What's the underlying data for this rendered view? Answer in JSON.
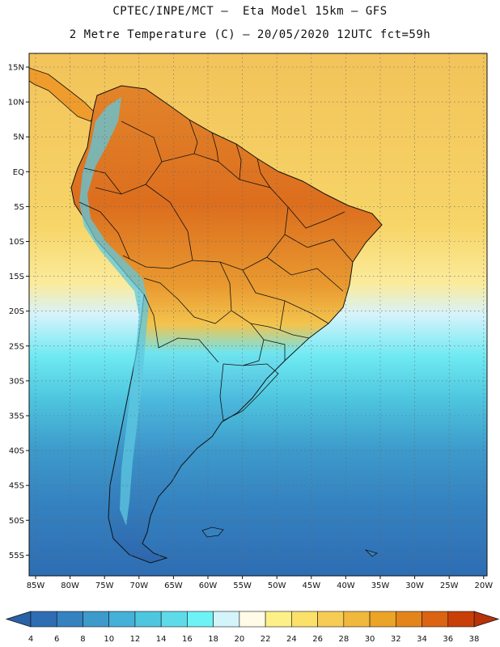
{
  "header": {
    "line1": "CPTEC/INPE/MCT –  Eta Model 15km – GFS",
    "line2": "2 Metre Temperature (C) – 20/05/2020 12UTC fct=59h"
  },
  "map": {
    "lat_labels": [
      "15N",
      "10N",
      "5N",
      "EQ",
      "5S",
      "10S",
      "15S",
      "20S",
      "25S",
      "30S",
      "35S",
      "40S",
      "45S",
      "50S",
      "55S"
    ],
    "lon_labels": [
      "85W",
      "80W",
      "75W",
      "70W",
      "65W",
      "60W",
      "55W",
      "50W",
      "45W",
      "40W",
      "35W",
      "30W",
      "25W",
      "20W"
    ]
  },
  "colorbar": {
    "labels": [
      "4",
      "6",
      "8",
      "10",
      "12",
      "14",
      "16",
      "18",
      "20",
      "22",
      "24",
      "26",
      "28",
      "30",
      "32",
      "34",
      "36",
      "38"
    ],
    "colors": {
      "under": "#2a62a8",
      "bins": [
        "#2e6db3",
        "#3582c0",
        "#3d9acb",
        "#45b0d8",
        "#4ec6df",
        "#5edbe8",
        "#6df3f5",
        "#d4f4fb",
        "#fffbe6",
        "#fdf088",
        "#fbe06a",
        "#f6cc55",
        "#f0b83c",
        "#eca426",
        "#e4851c",
        "#db6312",
        "#c84008"
      ],
      "over": "#b8320a"
    }
  },
  "colors": {
    "ocean_warm": "#f4c45c",
    "ocean_cold": "#2e6db3",
    "land_hot": "#d8661c",
    "land_cold": "#2e6db3",
    "border": "#111111"
  }
}
